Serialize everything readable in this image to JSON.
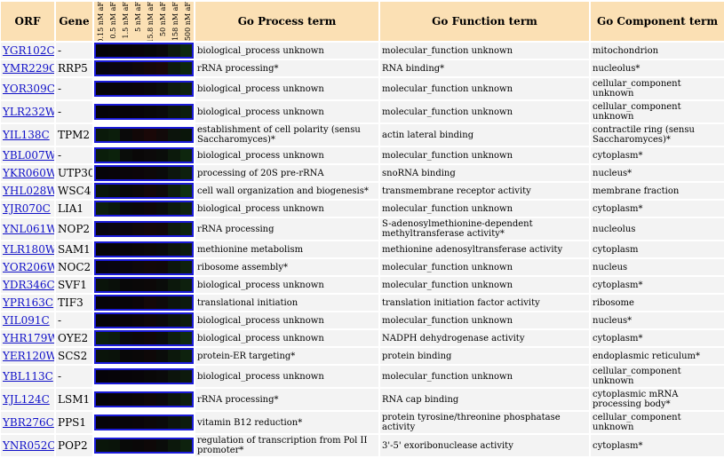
{
  "headers": {
    "orf": "ORF",
    "gene": "Gene",
    "process": "Go Process term",
    "function": "Go Function term",
    "component": "Go Component term"
  },
  "conditions": [
    "0.15 nM aF",
    "0.5 nM aF",
    "1.5 nM aF",
    "5 nM aF",
    "15.8 nM aF",
    "50 nM aF",
    "158 nM aF",
    "500 nM aF"
  ],
  "rows": [
    {
      "orf": "YGR102C",
      "gene": "-",
      "process": "biological_process unknown",
      "function": "molecular_function unknown",
      "component": "mitochondrion",
      "heat": [
        "#050308",
        "#060408",
        "#070408",
        "#080508",
        "#070808",
        "#0a0a0a",
        "#0d1a0d",
        "#0e2a0e"
      ]
    },
    {
      "orf": "YMR229C",
      "gene": "RRP5",
      "process": "rRNA processing*",
      "function": "RNA binding*",
      "component": "nucleolus*",
      "heat": [
        "#080510",
        "#0a0510",
        "#0c060c",
        "#10080a",
        "#160808",
        "#1a0808",
        "#0d1a0d",
        "#0d260d"
      ]
    },
    {
      "orf": "YOR309C",
      "gene": "-",
      "process": "biological_process unknown",
      "function": "molecular_function unknown",
      "component": "cellular_component unknown",
      "heat": [
        "#060408",
        "#070408",
        "#080508",
        "#0a0508",
        "#0a0808",
        "#0a0d0a",
        "#0d1a0d",
        "#0e220e"
      ]
    },
    {
      "orf": "YLR232W",
      "gene": "-",
      "process": "biological_process unknown",
      "function": "molecular_function unknown",
      "component": "cellular_component unknown",
      "heat": [
        "#050308",
        "#060408",
        "#070408",
        "#080508",
        "#090808",
        "#0a0a0a",
        "#0c160c",
        "#0d1e0d"
      ]
    },
    {
      "orf": "YIL138C",
      "gene": "TPM2",
      "process": "establishment of cell polarity (sensu Saccharomyces)*",
      "function": "actin lateral binding",
      "component": "contractile ring (sensu Saccharomyces)*",
      "heat": [
        "#0a1a0a",
        "#0c1e0c",
        "#0a0a0a",
        "#120808",
        "#1a0808",
        "#120a0a",
        "#0c140c",
        "#0a160a"
      ],
      "tall": true
    },
    {
      "orf": "YBL007W",
      "gene": "-",
      "process": "biological_process unknown",
      "function": "molecular_function unknown",
      "component": "cytoplasm*",
      "heat": [
        "#0a1e0a",
        "#0c220c",
        "#0a0d0a",
        "#0a0808",
        "#0c0a0a",
        "#0a0d0a",
        "#0c1a0c",
        "#0e260e"
      ]
    },
    {
      "orf": "YKR060W",
      "gene": "UTP30",
      "process": "processing of 20S pre-rRNA",
      "function": "snoRNA binding",
      "component": "nucleus*",
      "heat": [
        "#060408",
        "#080408",
        "#0a0508",
        "#0c0508",
        "#0d0808",
        "#0a0a0a",
        "#0d160d",
        "#0e200e"
      ]
    },
    {
      "orf": "YHL028W",
      "gene": "WSC4",
      "process": "cell wall organization and biogenesis*",
      "function": "transmembrane receptor activity",
      "component": "membrane fraction",
      "heat": [
        "#0a160a",
        "#0a120a",
        "#080808",
        "#0c0808",
        "#140808",
        "#0e0a0a",
        "#0d1e0d",
        "#10320f"
      ]
    },
    {
      "orf": "YJR070C",
      "gene": "LIA1",
      "process": "biological_process unknown",
      "function": "molecular_function unknown",
      "component": "cytoplasm*",
      "heat": [
        "#0c200c",
        "#0a1a0a",
        "#080a08",
        "#0a0808",
        "#0e0808",
        "#0a0d0a",
        "#0c1a0c",
        "#0e240e"
      ]
    },
    {
      "orf": "YNL061W",
      "gene": "NOP2",
      "process": "rRNA processing",
      "function": "S-adenosylmethionine-dependent methyltransferase activity*",
      "component": "nucleolus",
      "heat": [
        "#080510",
        "#0a0610",
        "#0c060c",
        "#10080a",
        "#140808",
        "#120808",
        "#0d1a0d",
        "#0e240e"
      ],
      "tall": true
    },
    {
      "orf": "YLR180W",
      "gene": "SAM1",
      "process": "methionine metabolism",
      "function": "methionine adenosyltransferase activity",
      "component": "cytoplasm",
      "heat": [
        "#060408",
        "#070408",
        "#080508",
        "#0a0608",
        "#0c0808",
        "#0a0a0a",
        "#0c140c",
        "#0d1c0d"
      ]
    },
    {
      "orf": "YOR206W",
      "gene": "NOC2",
      "process": "ribosome assembly*",
      "function": "molecular_function unknown",
      "component": "nucleus",
      "heat": [
        "#070410",
        "#080510",
        "#0a060c",
        "#0e080a",
        "#120808",
        "#100808",
        "#0c160c",
        "#0e200e"
      ]
    },
    {
      "orf": "YDR346C",
      "gene": "SVF1",
      "process": "biological_process unknown",
      "function": "molecular_function unknown",
      "component": "cytoplasm*",
      "heat": [
        "#0a140a",
        "#0a100a",
        "#080808",
        "#0a0808",
        "#0c0808",
        "#0a0c0a",
        "#0c180c",
        "#0e200e"
      ]
    },
    {
      "orf": "YPR163C",
      "gene": "TIF3",
      "process": "translational initiation",
      "function": "translation initiation factor activity",
      "component": "ribosome",
      "heat": [
        "#060408",
        "#070408",
        "#080508",
        "#0c0508",
        "#140808",
        "#0e0a0a",
        "#0c140c",
        "#0d1a0d"
      ]
    },
    {
      "orf": "YIL091C",
      "gene": "-",
      "process": "biological_process unknown",
      "function": "molecular_function unknown",
      "component": "nucleus*",
      "heat": [
        "#060408",
        "#070408",
        "#090508",
        "#0c0608",
        "#100808",
        "#0c0a0a",
        "#0c140c",
        "#0d1c0d"
      ]
    },
    {
      "orf": "YHR179W",
      "gene": "OYE2",
      "process": "biological_process unknown",
      "function": "NADPH dehydrogenase activity",
      "component": "cytoplasm*",
      "heat": [
        "#0c200c",
        "#0c1c0c",
        "#0a0a0a",
        "#0c0808",
        "#100808",
        "#0a0d0a",
        "#0d1e0d",
        "#0f2a0f"
      ]
    },
    {
      "orf": "YER120W",
      "gene": "SCS2",
      "process": "protein-ER targeting*",
      "function": "protein binding",
      "component": "endoplasmic reticulum*",
      "heat": [
        "#0a140a",
        "#0a120a",
        "#080808",
        "#0a0808",
        "#0e0808",
        "#0a0c0a",
        "#0c180c",
        "#0e220e"
      ]
    },
    {
      "orf": "YBL113C",
      "gene": "-",
      "process": "biological_process unknown",
      "function": "molecular_function unknown",
      "component": "cellular_component unknown",
      "heat": [
        "#050308",
        "#060408",
        "#070408",
        "#080508",
        "#090808",
        "#0a0a0a",
        "#0c140c",
        "#0d1a0d"
      ]
    },
    {
      "orf": "YJL124C",
      "gene": "LSM1",
      "process": "rRNA processing*",
      "function": "RNA cap binding",
      "component": "cytoplasmic mRNA processing body*",
      "heat": [
        "#060408",
        "#080408",
        "#0a0508",
        "#0c0608",
        "#100808",
        "#0c0a0a",
        "#0c160c",
        "#0e200e"
      ],
      "tall": true
    },
    {
      "orf": "YBR276C",
      "gene": "PPS1",
      "process": "vitamin B12 reduction*",
      "function": "protein tyrosine/threonine phosphatase activity",
      "component": "cellular_component unknown",
      "heat": [
        "#060408",
        "#070408",
        "#080508",
        "#0a0508",
        "#0c0808",
        "#0a0a0a",
        "#0c140c",
        "#0d1c0d"
      ]
    },
    {
      "orf": "YNR052C",
      "gene": "POP2",
      "process": "regulation of transcription from Pol II promoter*",
      "function": "3'-5' exoribonuclease activity",
      "component": "cytoplasm*",
      "heat": [
        "#0a160a",
        "#0a140a",
        "#080a08",
        "#0a0808",
        "#0e0808",
        "#0a0c0a",
        "#0c180c",
        "#0e220e"
      ],
      "tall": true
    }
  ]
}
